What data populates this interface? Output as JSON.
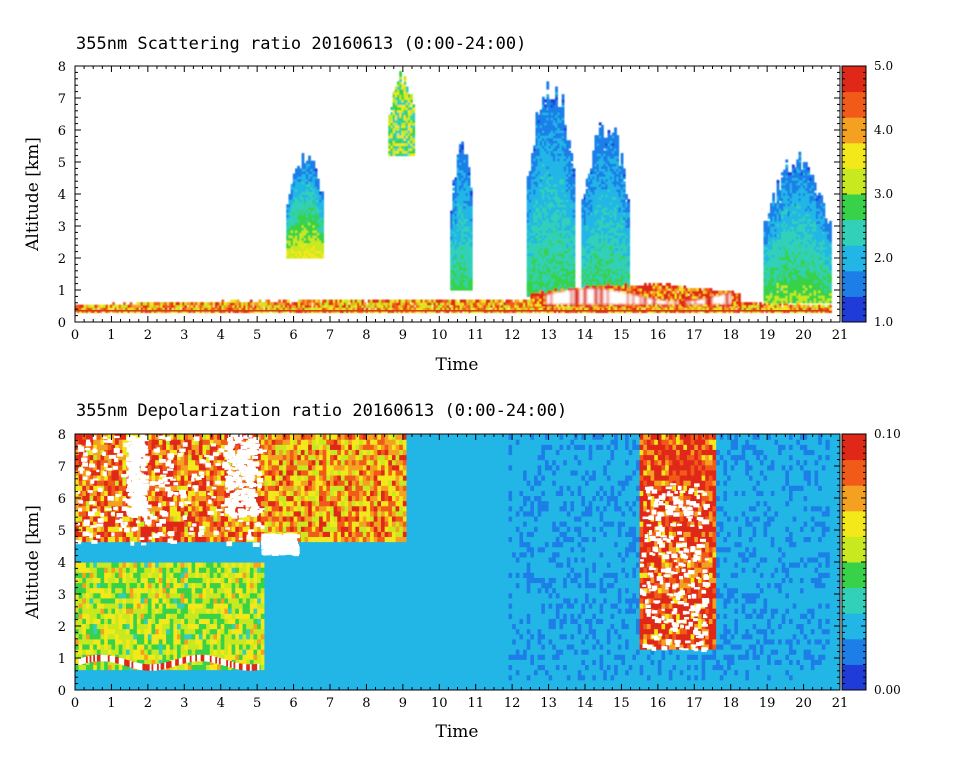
{
  "colorscale": [
    "#1f3cd8",
    "#1e7ee8",
    "#22b6e6",
    "#32d0b8",
    "#37d24a",
    "#c8e820",
    "#f3e81a",
    "#f4a020",
    "#f25a1a",
    "#e02818"
  ],
  "chart_data": [
    {
      "type": "heatmap",
      "title": "355nm Scattering ratio  20160613 (0:00-24:00)",
      "xlabel": "Time",
      "ylabel": "Altitude [km]",
      "xlim": [
        0,
        21
      ],
      "ylim": [
        0,
        8
      ],
      "x_ticks": [
        "0",
        "1",
        "2",
        "3",
        "4",
        "5",
        "6",
        "7",
        "8",
        "9",
        "10",
        "11",
        "12",
        "13",
        "14",
        "15",
        "16",
        "17",
        "18",
        "19",
        "20",
        "21"
      ],
      "y_ticks": [
        "0",
        "1",
        "2",
        "3",
        "4",
        "5",
        "6",
        "7",
        "8"
      ],
      "colorbar": {
        "min": 1.0,
        "max": 5.0,
        "labels": [
          "1.0",
          "2.0",
          "3.0",
          "4.0",
          "5.0"
        ]
      },
      "features": [
        {
          "name": "surface aerosol layer",
          "x": [
            0,
            20.7
          ],
          "y": [
            0.3,
            0.7
          ],
          "value": 4.0
        },
        {
          "name": "cloud 6h",
          "x": [
            5.8,
            6.8
          ],
          "y": [
            2.0,
            5.4
          ],
          "value": 2.6
        },
        {
          "name": "cloud 9h",
          "x": [
            8.6,
            9.3
          ],
          "y": [
            5.2,
            7.8
          ],
          "value": 3.0
        },
        {
          "name": "cloud 10h",
          "x": [
            10.3,
            10.9
          ],
          "y": [
            1.0,
            6.0
          ],
          "value": 2.0
        },
        {
          "name": "cloud 12-13h",
          "x": [
            12.4,
            13.7
          ],
          "y": [
            0.8,
            8.0
          ],
          "value": 2.0
        },
        {
          "name": "cloud 14h",
          "x": [
            13.9,
            15.2
          ],
          "y": [
            0.8,
            6.5
          ],
          "value": 2.0
        },
        {
          "name": "boundary layer 12.5-18h",
          "x": [
            12.5,
            18.2
          ],
          "y": [
            0.5,
            1.2
          ],
          "value": 4.6
        },
        {
          "name": "cloud 20h",
          "x": [
            18.9,
            20.7
          ],
          "y": [
            0.6,
            5.3
          ],
          "value": 2.2
        }
      ]
    },
    {
      "type": "heatmap",
      "title": "355nm Depolarization ratio  20160613 (0:00-24:00)",
      "xlabel": "Time",
      "ylabel": "Altitude [km]",
      "xlim": [
        0,
        21
      ],
      "ylim": [
        0,
        8
      ],
      "x_ticks": [
        "0",
        "1",
        "2",
        "3",
        "4",
        "5",
        "6",
        "7",
        "8",
        "9",
        "10",
        "11",
        "12",
        "13",
        "14",
        "15",
        "16",
        "17",
        "18",
        "19",
        "20",
        "21"
      ],
      "y_ticks": [
        "0",
        "1",
        "2",
        "3",
        "4",
        "5",
        "6",
        "7",
        "8"
      ],
      "colorbar": {
        "min": 0.0,
        "max": 0.1,
        "labels": [
          "0.00",
          "0.10"
        ]
      },
      "features": [
        {
          "name": "high depol aloft 0-5h",
          "x": [
            0,
            5.1
          ],
          "y": [
            4.5,
            8.0
          ],
          "value": 0.09
        },
        {
          "name": "dust layer 0-5h",
          "x": [
            0,
            5.1
          ],
          "y": [
            0.5,
            4.0
          ],
          "value": 0.06
        },
        {
          "name": "high depol 5-9h",
          "x": [
            5.1,
            9.0
          ],
          "y": [
            4.5,
            8.0
          ],
          "value": 0.08
        },
        {
          "name": "low depol background 12-21h",
          "x": [
            11.8,
            20.7
          ],
          "y": [
            0,
            8.0
          ],
          "value": 0.025
        },
        {
          "name": "high depol column 16-17h",
          "x": [
            15.4,
            17.5
          ],
          "y": [
            1.2,
            8.0
          ],
          "value": 0.1
        }
      ]
    }
  ]
}
